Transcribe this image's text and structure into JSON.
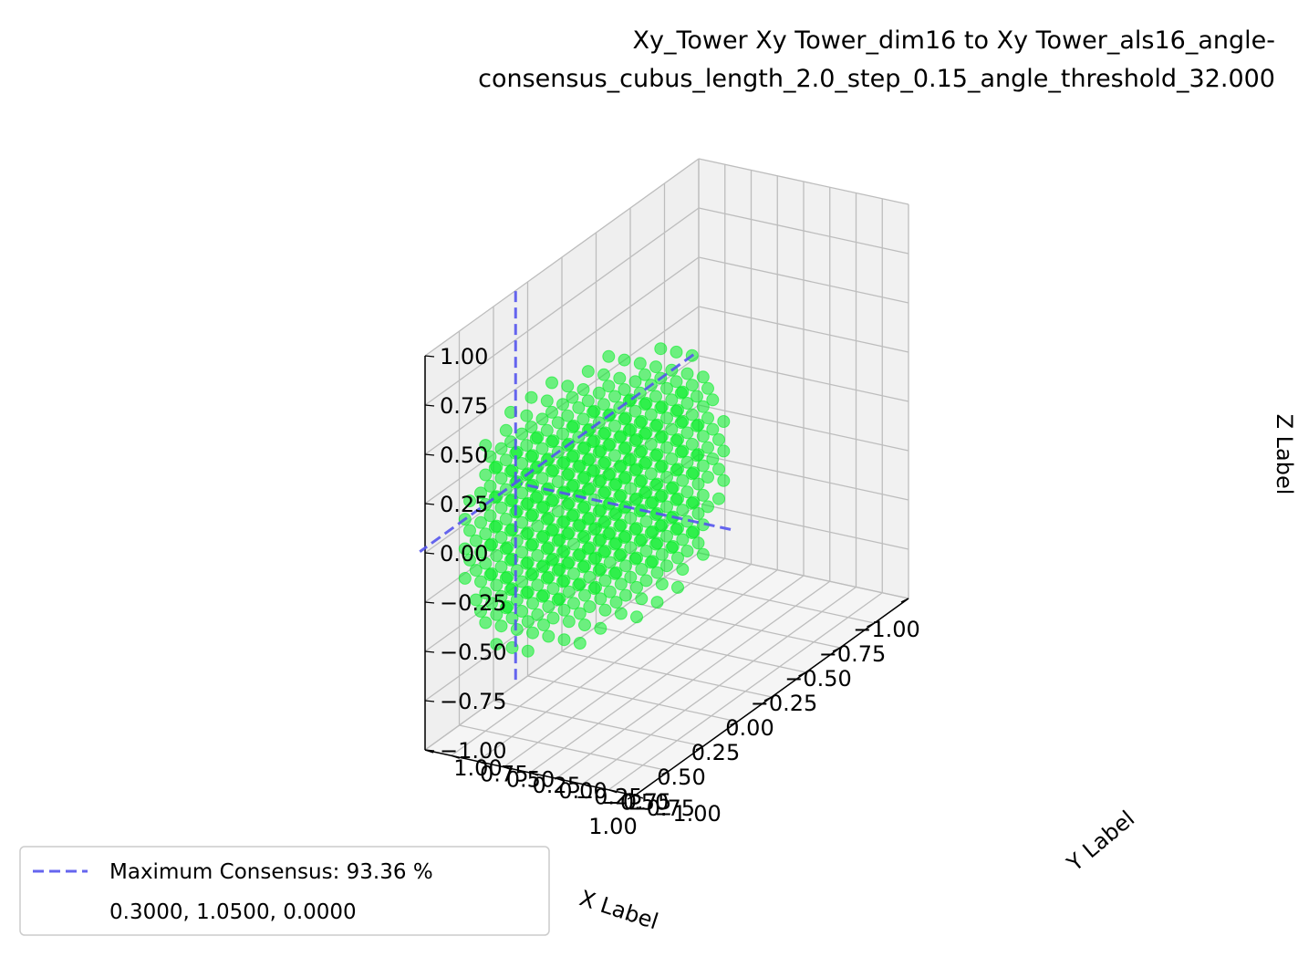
{
  "chart_data": {
    "type": "scatter3d",
    "title_line1": "Xy_Tower Xy Tower_dim16 to Xy Tower_als16_angle-",
    "title_line2": "consensus_cubus_length_2.0_step_0.15_angle_threshold_32.000",
    "xlabel": "X Label",
    "ylabel": "Y Label",
    "zlabel": "Z Label",
    "xlim": [
      -1.0,
      1.0
    ],
    "ylim": [
      -1.0,
      1.0
    ],
    "zlim": [
      -1.0,
      1.0
    ],
    "ticks": [
      -1.0,
      -0.75,
      -0.5,
      -0.25,
      0.0,
      0.25,
      0.5,
      0.75,
      1.0
    ],
    "x_tick_labels": [
      "−1.00",
      "−0.75",
      "−0.50",
      "−0.25",
      "0.00",
      "0.25",
      "0.50",
      "0.75",
      "1.00"
    ],
    "y_tick_labels": [
      "−1.00",
      "−0.75",
      "−0.50",
      "−0.25",
      "0.00",
      "0.25",
      "0.50",
      "0.75",
      "1.00"
    ],
    "z_tick_labels": [
      "−1.00",
      "−0.75",
      "−0.50",
      "−0.25",
      "0.00",
      "0.25",
      "0.50",
      "0.75",
      "1.00"
    ],
    "grid": true,
    "point_color": "#00ee22",
    "line_color": "#5555ee",
    "scatter_grid": {
      "step": 0.15,
      "x_values": [
        -0.45,
        -0.3,
        -0.15,
        0.0,
        0.15,
        0.3,
        0.45,
        0.6,
        0.75,
        0.9,
        1.05
      ],
      "y_values": [
        -0.45,
        -0.3,
        -0.15,
        0.0,
        0.15,
        0.3,
        0.45,
        0.6,
        0.75,
        0.9,
        1.05
      ],
      "z_values": [
        -0.45,
        -0.3,
        -0.15,
        0.0,
        0.15,
        0.3,
        0.45
      ],
      "note_shape": "points within sphere-like cluster around center"
    },
    "max_consensus_point": [
      0.3,
      1.05,
      0.0
    ],
    "legend": {
      "placement": "lower-left",
      "line_label": "Maximum Consensus: 93.36 %",
      "coords_label": "0.3000, 1.0500, 0.0000"
    }
  }
}
